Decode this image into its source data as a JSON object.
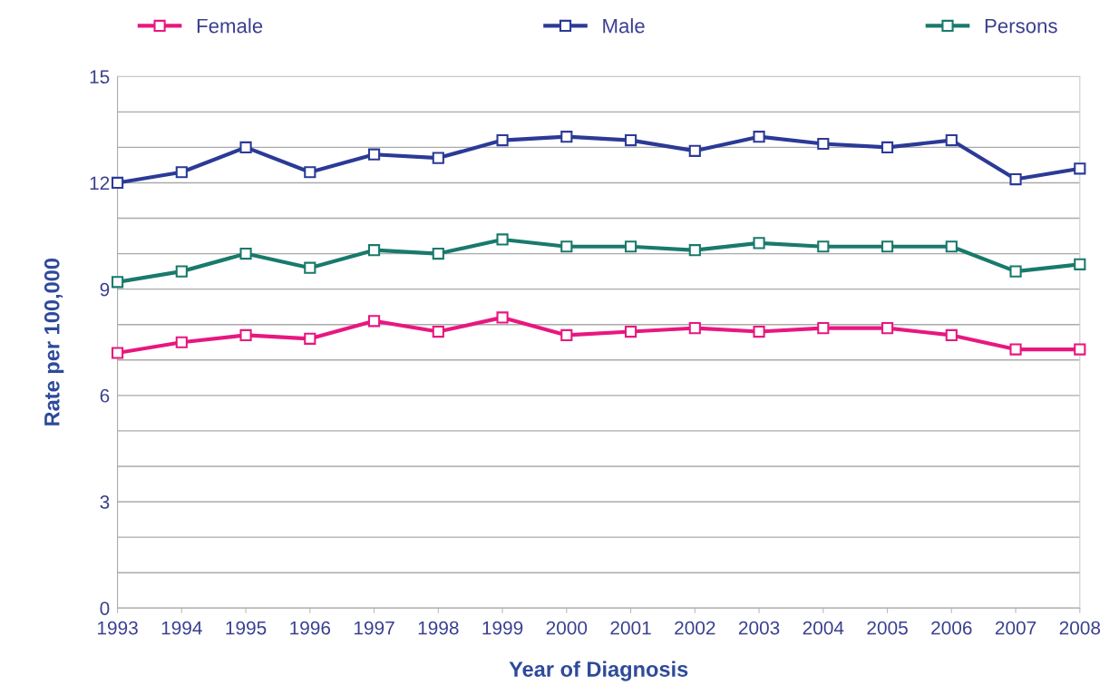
{
  "chart_data": {
    "type": "line",
    "xlabel": "Year of Diagnosis",
    "ylabel": "Rate per 100,000",
    "categories": [
      "1993",
      "1994",
      "1995",
      "1996",
      "1997",
      "1998",
      "1999",
      "2000",
      "2001",
      "2002",
      "2003",
      "2004",
      "2005",
      "2006",
      "2007",
      "2008"
    ],
    "series": [
      {
        "name": "Female",
        "color": "#e8177f",
        "values": [
          7.2,
          7.5,
          7.7,
          7.6,
          8.1,
          7.8,
          8.2,
          7.7,
          7.8,
          7.9,
          7.8,
          7.9,
          7.9,
          7.7,
          7.3,
          7.3
        ]
      },
      {
        "name": "Male",
        "color": "#2b3a96",
        "values": [
          12.0,
          12.3,
          13.0,
          12.3,
          12.8,
          12.7,
          13.2,
          13.3,
          13.2,
          12.9,
          13.3,
          13.1,
          13.0,
          13.2,
          12.1,
          12.4
        ]
      },
      {
        "name": "Persons",
        "color": "#187a6c",
        "values": [
          9.2,
          9.5,
          10.0,
          9.6,
          10.1,
          10.0,
          10.4,
          10.2,
          10.2,
          10.1,
          10.3,
          10.2,
          10.2,
          10.2,
          9.5,
          9.7
        ]
      }
    ],
    "ylim": [
      0,
      15
    ],
    "yticks": [
      0,
      {
        "value": 1,
        "label": null
      },
      {
        "value": 2,
        "label": null
      },
      3,
      {
        "value": 4,
        "label": null
      },
      {
        "value": 5,
        "label": null
      },
      6,
      {
        "value": 7,
        "label": null
      },
      {
        "value": 8,
        "label": null
      },
      9,
      {
        "value": 10,
        "label": null
      },
      {
        "value": 11,
        "label": null
      },
      12,
      {
        "value": 13,
        "label": null
      },
      {
        "value": 14,
        "label": null
      },
      15
    ],
    "grid": "y",
    "legend": "top",
    "marker": "square",
    "line_style": "solid"
  }
}
